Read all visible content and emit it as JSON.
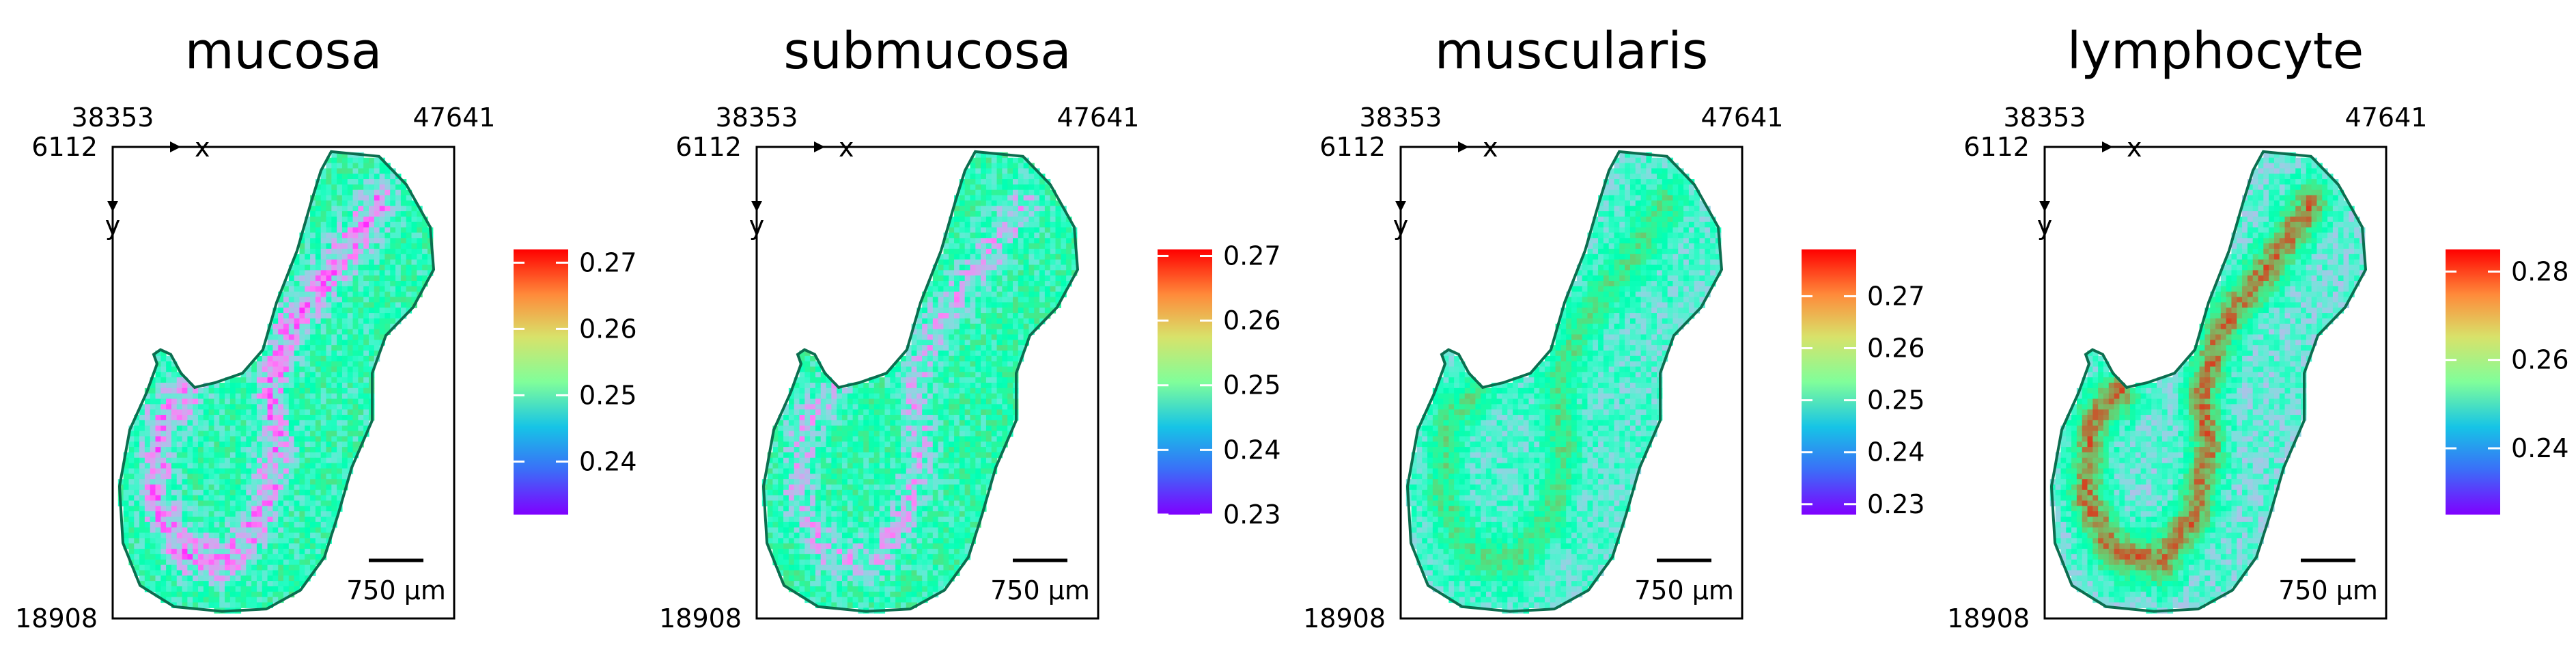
{
  "chart_data": [
    {
      "type": "heatmap",
      "title": "mucosa",
      "x_ticks": [
        "38353",
        "47641"
      ],
      "y_ticks": [
        "6112",
        "18908"
      ],
      "axis_x_label": "x",
      "axis_y_label": "y",
      "scale_bar": "750 µm",
      "colorbar": {
        "min": 0.232,
        "max": 0.272,
        "ticks": [
          "0.24",
          "0.25",
          "0.26",
          "0.27"
        ],
        "tick_values": [
          0.24,
          0.25,
          0.26,
          0.27
        ]
      },
      "pattern": {
        "base": 0.252,
        "band": -0.012,
        "noise": 0.006
      }
    },
    {
      "type": "heatmap",
      "title": "submucosa",
      "x_ticks": [
        "38353",
        "47641"
      ],
      "y_ticks": [
        "6112",
        "18908"
      ],
      "axis_x_label": "x",
      "axis_y_label": "y",
      "scale_bar": "750 µm",
      "colorbar": {
        "min": 0.23,
        "max": 0.271,
        "ticks": [
          "0.23",
          "0.24",
          "0.25",
          "0.26",
          "0.27"
        ],
        "tick_values": [
          0.23,
          0.24,
          0.25,
          0.26,
          0.27
        ]
      },
      "pattern": {
        "base": 0.251,
        "band": -0.009,
        "noise": 0.006
      }
    },
    {
      "type": "heatmap",
      "title": "muscularis",
      "x_ticks": [
        "38353",
        "47641"
      ],
      "y_ticks": [
        "6112",
        "18908"
      ],
      "axis_x_label": "x",
      "axis_y_label": "y",
      "scale_bar": "750 µm",
      "colorbar": {
        "min": 0.228,
        "max": 0.279,
        "ticks": [
          "0.23",
          "0.24",
          "0.25",
          "0.26",
          "0.27"
        ],
        "tick_values": [
          0.23,
          0.24,
          0.25,
          0.26,
          0.27
        ]
      },
      "pattern": {
        "base": 0.248,
        "band": 0.012,
        "noise": 0.005
      }
    },
    {
      "type": "heatmap",
      "title": "lymphocyte",
      "x_ticks": [
        "38353",
        "47641"
      ],
      "y_ticks": [
        "6112",
        "18908"
      ],
      "axis_x_label": "x",
      "axis_y_label": "y",
      "scale_bar": "750 µm",
      "colorbar": {
        "min": 0.225,
        "max": 0.285,
        "ticks": [
          "0.24",
          "0.26",
          "0.28"
        ],
        "tick_values": [
          0.24,
          0.26,
          0.28
        ]
      },
      "pattern": {
        "base": 0.247,
        "band": 0.028,
        "noise": 0.006
      }
    }
  ]
}
